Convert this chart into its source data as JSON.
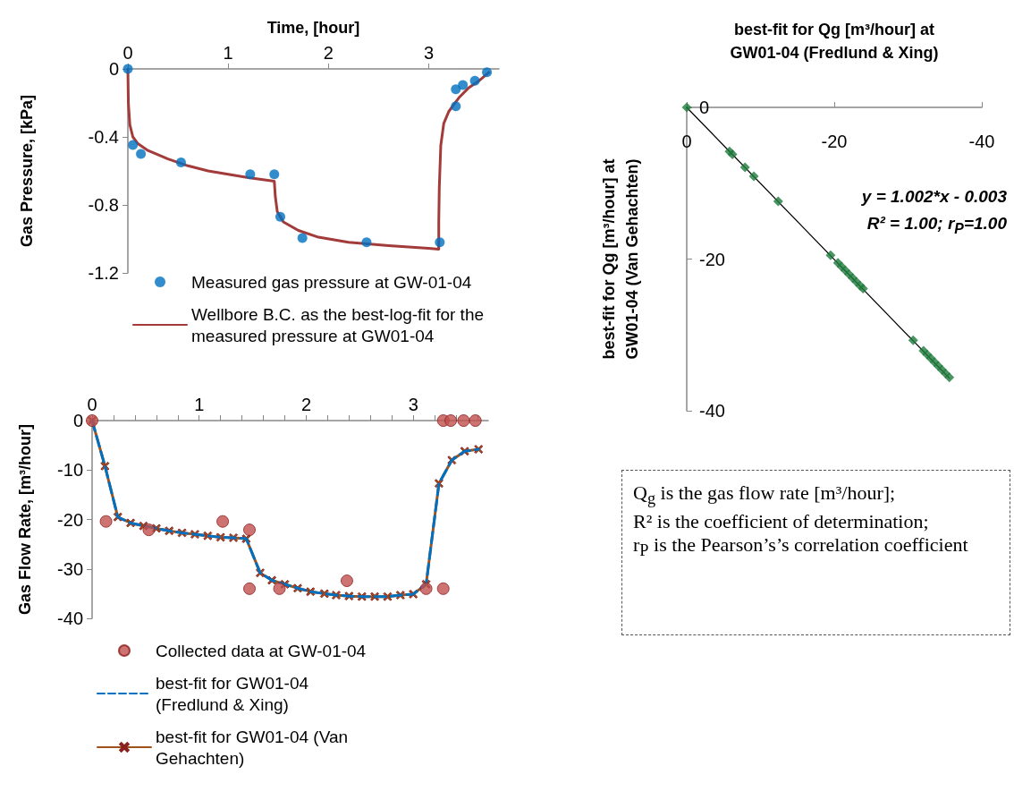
{
  "chart_data": [
    {
      "type": "scatter",
      "xlabel": "Time, [hour]",
      "ylabel": "Gas Pressure, [kPa]",
      "xlim": [
        0,
        3.7
      ],
      "xticks": [
        0,
        1,
        2,
        3
      ],
      "ylim": [
        -1.2,
        0
      ],
      "yticks": [
        -1.2,
        -0.8,
        -0.4,
        0
      ],
      "legend": "bottom",
      "series": [
        {
          "type": "scatter",
          "name": "Measured gas pressure at GW-01-04",
          "color": "#0070c0",
          "marker": "circle",
          "x": [
            0,
            0.05,
            0.13,
            0.53,
            1.22,
            1.46,
            1.52,
            1.74,
            2.38,
            3.11,
            3.27,
            3.27,
            3.34,
            3.46,
            3.58
          ],
          "values": [
            0,
            -0.447,
            -0.5,
            -0.55,
            -0.62,
            -0.62,
            -0.87,
            -0.995,
            -1.02,
            -1.02,
            -0.22,
            -0.12,
            -0.095,
            -0.07,
            -0.02
          ]
        },
        {
          "type": "line",
          "name": "Wellbore B.C. as the best-log-fit for the measured pressure at GW01-04",
          "color": "#a33b3b",
          "marker": "none",
          "line_style": "solid",
          "x": [
            0,
            0.005,
            0.02,
            0.05,
            0.1,
            0.2,
            0.4,
            0.6,
            0.8,
            1.0,
            1.2,
            1.46,
            1.47,
            1.49,
            1.55,
            1.7,
            1.9,
            2.2,
            2.6,
            3.0,
            3.1,
            3.1,
            3.105,
            3.12,
            3.15,
            3.2,
            3.3,
            3.4,
            3.5,
            3.6
          ],
          "values": [
            0,
            -0.2,
            -0.33,
            -0.4,
            -0.44,
            -0.48,
            -0.53,
            -0.57,
            -0.6,
            -0.62,
            -0.64,
            -0.66,
            -0.75,
            -0.84,
            -0.9,
            -0.95,
            -0.99,
            -1.02,
            -1.04,
            -1.055,
            -1.06,
            -0.9,
            -0.7,
            -0.45,
            -0.32,
            -0.25,
            -0.17,
            -0.11,
            -0.07,
            -0.02
          ]
        }
      ]
    },
    {
      "type": "line",
      "ylabel": "Gas Flow Rate, [m³/hour]",
      "xlim": [
        0,
        3.7
      ],
      "xticks": [
        0,
        {
          "value": 0.2,
          "label": null
        },
        {
          "value": 0.4,
          "label": null
        },
        {
          "value": 0.6,
          "label": null
        },
        {
          "value": 0.8,
          "label": null
        },
        1,
        {
          "value": 1.2,
          "label": null
        },
        {
          "value": 1.4,
          "label": null
        },
        {
          "value": 1.6,
          "label": null
        },
        {
          "value": 1.8,
          "label": null
        },
        2,
        {
          "value": 2.2,
          "label": null
        },
        {
          "value": 2.4,
          "label": null
        },
        {
          "value": 2.6,
          "label": null
        },
        {
          "value": 2.8,
          "label": null
        },
        3,
        {
          "value": 3.2,
          "label": null
        },
        {
          "value": 3.4,
          "label": null
        },
        {
          "value": 3.6,
          "label": null
        }
      ],
      "ylim": [
        -40,
        0
      ],
      "yticks": [
        -40,
        -30,
        -20,
        -10,
        0
      ],
      "legend": "bottom",
      "series": [
        {
          "type": "scatter",
          "name": "Collected data at GW-01-04",
          "color": "#c0504d",
          "marker": "circle",
          "x": [
            0,
            0.13,
            0.53,
            1.22,
            1.47,
            1.47,
            1.75,
            2.38,
            3.12,
            3.28,
            3.28,
            3.35,
            3.47,
            3.58
          ],
          "values": [
            0,
            -20.4,
            -22.1,
            -20.4,
            -22.1,
            -34.0,
            -34.0,
            -32.4,
            -34.0,
            -34.0,
            0,
            0,
            0,
            0
          ]
        },
        {
          "type": "line",
          "name": "best-fit for GW01-04 (Fredlund & Xing)",
          "color": "#0070c0",
          "marker": "none",
          "line_style": "dashed",
          "x": [
            0,
            0.12,
            0.24,
            0.36,
            0.48,
            0.6,
            0.72,
            0.84,
            0.96,
            1.08,
            1.2,
            1.32,
            1.44,
            1.57,
            1.68,
            1.8,
            1.92,
            2.04,
            2.17,
            2.28,
            2.4,
            2.52,
            2.64,
            2.76,
            2.88,
            3.0,
            3.12,
            3.24,
            3.36,
            3.48,
            3.61
          ],
          "values": [
            0,
            -9.2,
            -19.5,
            -20.7,
            -21.3,
            -21.8,
            -22.3,
            -22.7,
            -23.0,
            -23.3,
            -23.6,
            -23.7,
            -23.9,
            -30.8,
            -32.3,
            -33.1,
            -33.9,
            -34.6,
            -35.0,
            -35.3,
            -35.5,
            -35.6,
            -35.6,
            -35.6,
            -35.3,
            -35.1,
            -33.1,
            -12.7,
            -8.0,
            -6.2,
            -5.8
          ]
        },
        {
          "type": "line",
          "name": "best-fit for GW01-04 (Van Gehachten)",
          "color": "#a0521c",
          "marker": "cross",
          "line_style": "solid",
          "x": [
            0,
            0.12,
            0.24,
            0.36,
            0.48,
            0.6,
            0.72,
            0.84,
            0.96,
            1.08,
            1.2,
            1.32,
            1.44,
            1.57,
            1.68,
            1.8,
            1.92,
            2.04,
            2.17,
            2.28,
            2.4,
            2.52,
            2.64,
            2.76,
            2.88,
            3.0,
            3.12,
            3.24,
            3.36,
            3.48,
            3.61
          ],
          "values": [
            0,
            -9.2,
            -19.5,
            -20.7,
            -21.3,
            -21.8,
            -22.3,
            -22.7,
            -23.0,
            -23.3,
            -23.6,
            -23.7,
            -23.9,
            -30.8,
            -32.3,
            -33.1,
            -33.9,
            -34.6,
            -35.0,
            -35.3,
            -35.5,
            -35.6,
            -35.6,
            -35.6,
            -35.3,
            -35.1,
            -33.1,
            -12.7,
            -8.0,
            -6.2,
            -5.8
          ]
        }
      ]
    },
    {
      "type": "scatter",
      "xlabel": "best-fit for Qg [m³/hour] at GW01-04 (Fredlund & Xing)",
      "ylabel": "best-fit for Qg [m³/hour] at GW01-04 (Van Gehachten)",
      "xlim": [
        0,
        -40
      ],
      "xticks": [
        0,
        -20,
        -40
      ],
      "ylim": [
        -40,
        0
      ],
      "yticks": [
        -40,
        -20,
        0
      ],
      "annotations": [
        "y = 1.002*x - 0.003",
        "R² = 1.00; r$_{P}$=1.00"
      ],
      "series": [
        {
          "type": "scatter",
          "color": "#1e7a3c",
          "marker": "diamond",
          "x": [
            0,
            -5.8,
            -6.2,
            -7.9,
            -9.1,
            -12.4,
            -19.5,
            -20.5,
            -21.0,
            -21.5,
            -22.0,
            -22.5,
            -23.0,
            -23.5,
            -23.9,
            -30.7,
            -32.1,
            -32.6,
            -33.1,
            -33.6,
            -34.1,
            -34.6,
            -35.1,
            -35.6
          ],
          "values": [
            0,
            -5.8,
            -6.2,
            -7.9,
            -9.1,
            -12.4,
            -19.5,
            -20.5,
            -21.0,
            -21.5,
            -22.0,
            -22.5,
            -23.0,
            -23.5,
            -23.9,
            -30.7,
            -32.1,
            -32.6,
            -33.1,
            -33.6,
            -34.1,
            -34.6,
            -35.1,
            -35.6
          ]
        },
        {
          "type": "line",
          "color": "#000000",
          "marker": "none",
          "line_style": "solid",
          "x": [
            0,
            -35.6
          ],
          "values": [
            0,
            -35.7
          ]
        }
      ]
    },
    {
      "type": "other",
      "annotations": [
        "Q$_{g}$ is the gas flow rate [m³/hour];",
        "R² is the coefficient of determination;",
        "r$_{P}$ is the Pearson’s’s correlation coefficient"
      ]
    }
  ]
}
